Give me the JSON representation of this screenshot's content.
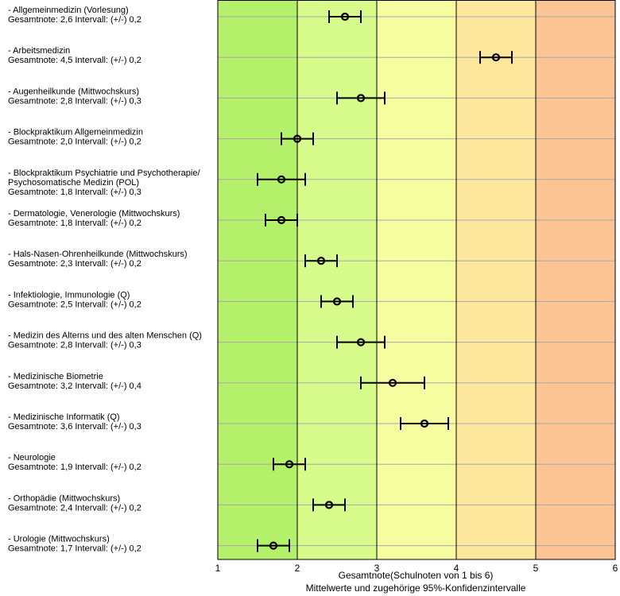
{
  "chart_data": {
    "type": "scatter",
    "orientation": "horizontal",
    "error_bars": true,
    "x_range": [
      1,
      6
    ],
    "x_ticks": [
      "1",
      "2",
      "3",
      "4",
      "5",
      "6"
    ],
    "xlabel": "Gesamtnote(Schulnoten von 1 bis 6)",
    "xlabel_sub": "Mittelwerte und zugehörige 95%-Konfidenzintervalle",
    "background_bands": [
      {
        "from": 1,
        "to": 2,
        "color": "#b5f06a"
      },
      {
        "from": 2,
        "to": 3,
        "color": "#d8fc8c"
      },
      {
        "from": 3,
        "to": 4,
        "color": "#f5fda0"
      },
      {
        "from": 4,
        "to": 5,
        "color": "#fde79c"
      },
      {
        "from": 5,
        "to": 6,
        "color": "#fcc494"
      }
    ],
    "grid": true,
    "rows": [
      {
        "label": [
          "- Allgemeinmedizin (Vorlesung)",
          "Gesamtnote: 2,6 Intervall: (+/-) 0,2"
        ],
        "mean": 2.6,
        "ci": 0.2
      },
      {
        "label": [
          "- Arbeitsmedizin",
          "Gesamtnote: 4,5 Intervall: (+/-) 0,2"
        ],
        "mean": 4.5,
        "ci": 0.2
      },
      {
        "label": [
          "- Augenheilkunde (Mittwochskurs)",
          "Gesamtnote: 2,8 Intervall: (+/-) 0,3"
        ],
        "mean": 2.8,
        "ci": 0.3
      },
      {
        "label": [
          "- Blockpraktikum Allgemeinmedizin",
          "Gesamtnote: 2,0 Intervall: (+/-) 0,2"
        ],
        "mean": 2.0,
        "ci": 0.2
      },
      {
        "label": [
          "- Blockpraktikum Psychiatrie und Psychotherapie/",
          "Psychosomatische Medizin (POL)",
          "Gesamtnote: 1,8 Intervall: (+/-) 0,3"
        ],
        "mean": 1.8,
        "ci": 0.3
      },
      {
        "label": [
          "- Dermatologie, Venerologie (Mittwochskurs)",
          "Gesamtnote: 1,8 Intervall: (+/-) 0,2"
        ],
        "mean": 1.8,
        "ci": 0.2
      },
      {
        "label": [
          "- Hals-Nasen-Ohrenheilkunde (Mittwochskurs)",
          "Gesamtnote: 2,3 Intervall: (+/-) 0,2"
        ],
        "mean": 2.3,
        "ci": 0.2
      },
      {
        "label": [
          "- Infektiologie, Immunologie (Q)",
          "Gesamtnote: 2,5 Intervall: (+/-) 0,2"
        ],
        "mean": 2.5,
        "ci": 0.2
      },
      {
        "label": [
          "- Medizin des Alterns und des alten Menschen (Q)",
          "Gesamtnote: 2,8 Intervall: (+/-) 0,3"
        ],
        "mean": 2.8,
        "ci": 0.3
      },
      {
        "label": [
          "- Medizinische Biometrie",
          "Gesamtnote: 3,2 Intervall: (+/-) 0,4"
        ],
        "mean": 3.2,
        "ci": 0.4
      },
      {
        "label": [
          "- Medizinische Informatik (Q)",
          "Gesamtnote: 3,6 Intervall: (+/-) 0,3"
        ],
        "mean": 3.6,
        "ci": 0.3
      },
      {
        "label": [
          "- Neurologie",
          "Gesamtnote: 1,9 Intervall: (+/-) 0,2"
        ],
        "mean": 1.9,
        "ci": 0.2
      },
      {
        "label": [
          "- Orthopädie (Mittwochskurs)",
          "Gesamtnote: 2,4 Intervall: (+/-) 0,2"
        ],
        "mean": 2.4,
        "ci": 0.2
      },
      {
        "label": [
          "- Urologie (Mittwochskurs)",
          "Gesamtnote: 1,7 Intervall: (+/-) 0,2"
        ],
        "mean": 1.7,
        "ci": 0.2
      }
    ]
  }
}
